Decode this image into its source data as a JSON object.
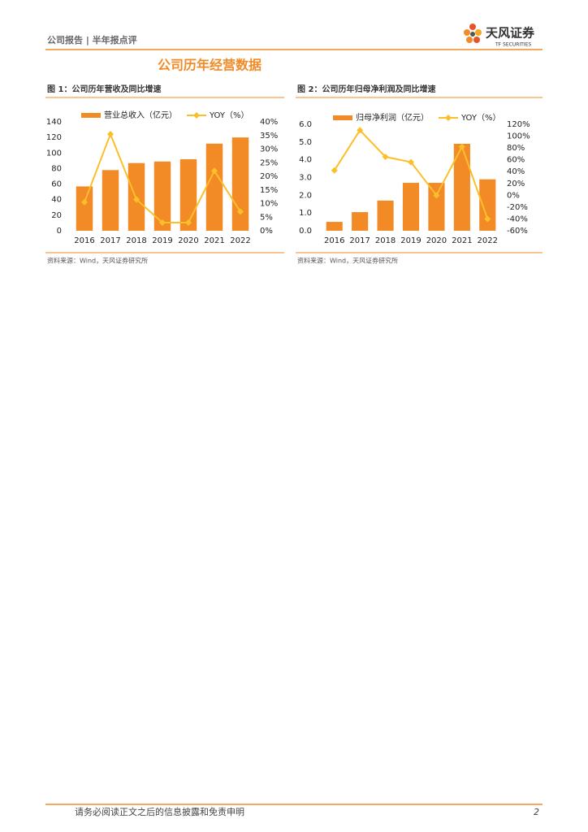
{
  "header": {
    "title": "公司报告 | 半年报点评",
    "brand": "天风证券",
    "brand_en": "TF SECURITIES"
  },
  "section_title": "公司历年经营数据",
  "chart_data": [
    {
      "type": "combo",
      "caption": "图 1：公司历年营收及同比增速",
      "source": "资料来源：Wind，天风证券研究所",
      "categories": [
        "2016",
        "2017",
        "2018",
        "2019",
        "2020",
        "2021",
        "2022"
      ],
      "series": [
        {
          "name": "营业总收入（亿元）",
          "color": "#f28a26",
          "values": [
            57,
            78,
            87,
            89,
            92,
            112,
            120
          ]
        },
        {
          "name": "YOY（%）",
          "color": "#fbbf2a",
          "axis": "y2",
          "values": [
            10.5,
            35.5,
            11.5,
            3,
            3,
            22,
            7
          ]
        }
      ],
      "ylim": [
        0,
        140
      ],
      "yticks": [
        0,
        20,
        40,
        60,
        80,
        100,
        120,
        140
      ],
      "y2lim": [
        0,
        40
      ],
      "y2ticks": [
        {
          "value": 0,
          "label": "0%"
        },
        {
          "value": 5,
          "label": "5%"
        },
        {
          "value": 10,
          "label": "10%"
        },
        {
          "value": 15,
          "label": "15%"
        },
        {
          "value": 20,
          "label": "20%"
        },
        {
          "value": 25,
          "label": "25%"
        },
        {
          "value": 30,
          "label": "30%"
        },
        {
          "value": 35,
          "label": "35%"
        },
        {
          "value": 40,
          "label": "40%"
        }
      ]
    },
    {
      "type": "combo",
      "caption": "图 2：公司历年归母净利润及同比增速",
      "source": "资料来源：Wind，天风证券研究所",
      "categories": [
        "2016",
        "2017",
        "2018",
        "2019",
        "2020",
        "2021",
        "2022"
      ],
      "series": [
        {
          "name": "归母净利润（亿元）",
          "color": "#f28a26",
          "values": [
            0.5,
            1.05,
            1.7,
            2.7,
            2.7,
            4.9,
            2.9
          ]
        },
        {
          "name": "YOY（%）",
          "color": "#fbbf2a",
          "axis": "y2",
          "values": [
            42,
            110,
            65,
            56,
            0,
            82,
            -40
          ]
        }
      ],
      "ylim": [
        0,
        6
      ],
      "yticks": [
        {
          "value": 0,
          "label": "0.0"
        },
        {
          "value": 1,
          "label": "1.0"
        },
        {
          "value": 2,
          "label": "2.0"
        },
        {
          "value": 3,
          "label": "3.0"
        },
        {
          "value": 4,
          "label": "4.0"
        },
        {
          "value": 5,
          "label": "5.0"
        },
        {
          "value": 6,
          "label": "6.0"
        }
      ],
      "y2lim": [
        -60,
        120
      ],
      "y2ticks": [
        {
          "value": -60,
          "label": "-60%"
        },
        {
          "value": -40,
          "label": "-40%"
        },
        {
          "value": -20,
          "label": "-20%"
        },
        {
          "value": 0,
          "label": "0%"
        },
        {
          "value": 20,
          "label": "20%"
        },
        {
          "value": 40,
          "label": "40%"
        },
        {
          "value": 60,
          "label": "60%"
        },
        {
          "value": 80,
          "label": "80%"
        },
        {
          "value": 100,
          "label": "100%"
        },
        {
          "value": 120,
          "label": "120%"
        }
      ]
    }
  ],
  "footer": {
    "disclaimer": "请务必阅读正文之后的信息披露和免责申明",
    "page": "2"
  }
}
